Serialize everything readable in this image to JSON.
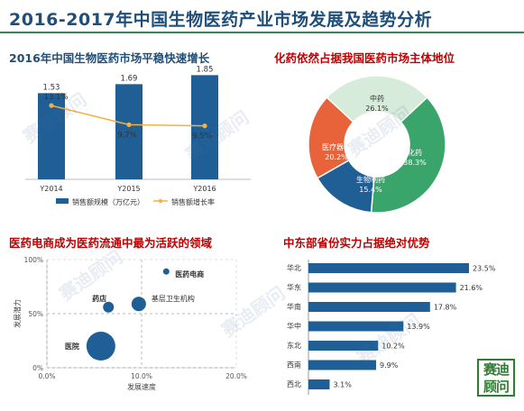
{
  "page": {
    "title": "2016-2017年中国生物医药产业市场发展及趋势分析",
    "watermark": "赛迪顾问",
    "seal_text": "赛迪顾问",
    "colors": {
      "title": "#1f4e79",
      "accent_red": "#c00000",
      "rule": "#2e8b57"
    }
  },
  "panels": {
    "p1_title": "2016年中国生物医药市场平稳快速增长",
    "p2_title": "化药依然占据我国医药市场主体地位",
    "p3_title": "医药电商成为医药流通中最为活跃的领域",
    "p4_title": "中东部省份实力占据绝对优势"
  },
  "chart_data": [
    {
      "type": "bar",
      "title": "2016年中国生物医药市场平稳快速增长",
      "categories": [
        "Y2014",
        "Y2015",
        "Y2016"
      ],
      "series": [
        {
          "name": "销售额规模（万亿元）",
          "values": [
            1.53,
            1.69,
            1.85
          ],
          "labels": [
            "1.53",
            "1.69",
            "1.85"
          ],
          "color": "#1f5f96"
        },
        {
          "name": "销售额增长率",
          "values": [
            13.1,
            9.7,
            9.5
          ],
          "labels": [
            "13.1%",
            "9.7%",
            "9.5%"
          ],
          "color": "#f5b041",
          "chart": "line"
        }
      ],
      "ylim": [
        0,
        2.0
      ]
    },
    {
      "type": "pie",
      "title": "化药依然占据我国医药市场主体地位",
      "slices": [
        {
          "name": "中药",
          "value": 26.1,
          "label": "26.1%",
          "color": "#d6ebd9"
        },
        {
          "name": "化药",
          "value": 38.3,
          "label": "38.3%",
          "color": "#3aa56b"
        },
        {
          "name": "生物制药",
          "value": 15.4,
          "label": "15.4%",
          "color": "#1f5f96"
        },
        {
          "name": "医疗器械",
          "value": 20.2,
          "label": "20.2%",
          "color": "#e8633a"
        }
      ]
    },
    {
      "type": "scatter",
      "title": "医药电商成为医药流通中最为活跃的领域",
      "xlabel": "发展速度",
      "ylabel": "发展潜力",
      "xlim": [
        0,
        20
      ],
      "ylim": [
        0,
        100
      ],
      "xticks": [
        "0.0%",
        "10.0%",
        "20.0%"
      ],
      "yticks": [
        "0%",
        "50%",
        "100%"
      ],
      "points": [
        {
          "name": "医院",
          "x": 5.7,
          "y": 20,
          "size": 16,
          "color": "#1f5f96"
        },
        {
          "name": "药店",
          "x": 6.5,
          "y": 56,
          "size": 6,
          "color": "#1f5f96"
        },
        {
          "name": "基层卫生机构",
          "x": 9.7,
          "y": 59,
          "size": 8,
          "color": "#1f5f96"
        },
        {
          "name": "医药电商",
          "x": 12.6,
          "y": 89,
          "size": 3.5,
          "color": "#1f5f96"
        }
      ]
    },
    {
      "type": "bar",
      "orientation": "horizontal",
      "title": "中东部省份实力占据绝对优势",
      "categories": [
        "华北",
        "华东",
        "华南",
        "华中",
        "东北",
        "西南",
        "西北"
      ],
      "values": [
        23.5,
        21.6,
        17.8,
        13.9,
        10.2,
        9.9,
        3.1
      ],
      "labels": [
        "23.5%",
        "21.6%",
        "17.8%",
        "13.9%",
        "10.2%",
        "9.9%",
        "3.1%"
      ],
      "color": "#1f5f96"
    }
  ]
}
